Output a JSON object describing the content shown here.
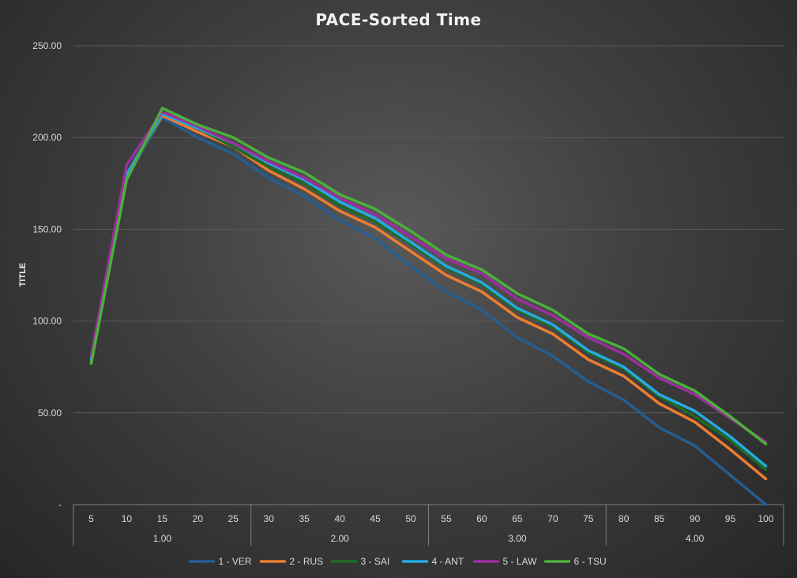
{
  "chart_data": {
    "type": "line",
    "title": "PACE-Sorted Time",
    "ylabel": "TITLE",
    "xlabel": "",
    "ylim": [
      0,
      250
    ],
    "y_ticks": [
      "-",
      "50.00",
      "100.00",
      "150.00",
      "200.00",
      "250.00"
    ],
    "grid": true,
    "legend_position": "bottom",
    "x": [
      "5",
      "10",
      "15",
      "20",
      "25",
      "30",
      "35",
      "40",
      "45",
      "50",
      "55",
      "60",
      "65",
      "70",
      "75",
      "80",
      "85",
      "90",
      "95",
      "100"
    ],
    "x_groups": [
      {
        "label": "1.00",
        "span": [
          "5",
          "25"
        ]
      },
      {
        "label": "2.00",
        "span": [
          "30",
          "50"
        ]
      },
      {
        "label": "3.00",
        "span": [
          "55",
          "75"
        ]
      },
      {
        "label": "4.00",
        "span": [
          "80",
          "100"
        ]
      }
    ],
    "series": [
      {
        "name": "1 - VER",
        "color": "#255e91",
        "values": [
          77,
          178,
          211,
          200,
          191,
          178,
          168,
          155,
          145,
          130,
          116,
          106,
          91,
          81,
          67,
          57,
          42,
          32,
          16,
          0
        ]
      },
      {
        "name": "2 - RUS",
        "color": "#ed7d31",
        "values": [
          78,
          179,
          212,
          203,
          195,
          182,
          172,
          160,
          151,
          138,
          125,
          116,
          102,
          93,
          79,
          70,
          55,
          45,
          30,
          14
        ]
      },
      {
        "name": "3 - SAI",
        "color": "#1e6b24",
        "values": [
          77,
          178,
          213,
          205,
          195,
          184,
          175,
          163,
          154,
          142,
          129,
          120,
          106,
          97,
          83,
          74,
          59,
          48,
          35,
          19
        ]
      },
      {
        "name": "4 - ANT",
        "color": "#27a9e1",
        "values": [
          79,
          180,
          213,
          205,
          197,
          186,
          177,
          165,
          156,
          143,
          130,
          121,
          107,
          98,
          84,
          75,
          60,
          51,
          37,
          21
        ]
      },
      {
        "name": "5 - LAW",
        "color": "#9b2f9e",
        "values": [
          81,
          185,
          214,
          206,
          197,
          187,
          178,
          167,
          158,
          146,
          134,
          126,
          112,
          103,
          91,
          82,
          69,
          60,
          47,
          34
        ]
      },
      {
        "name": "6 - TSU",
        "color": "#4caf3c",
        "values": [
          77,
          177,
          216,
          207,
          200,
          189,
          181,
          169,
          161,
          149,
          136,
          128,
          115,
          106,
          93,
          85,
          71,
          62,
          48,
          33
        ]
      }
    ]
  },
  "colors": {
    "gridline": "#595959",
    "axis": "#7f7f7f",
    "text": "#d9d9d9"
  }
}
